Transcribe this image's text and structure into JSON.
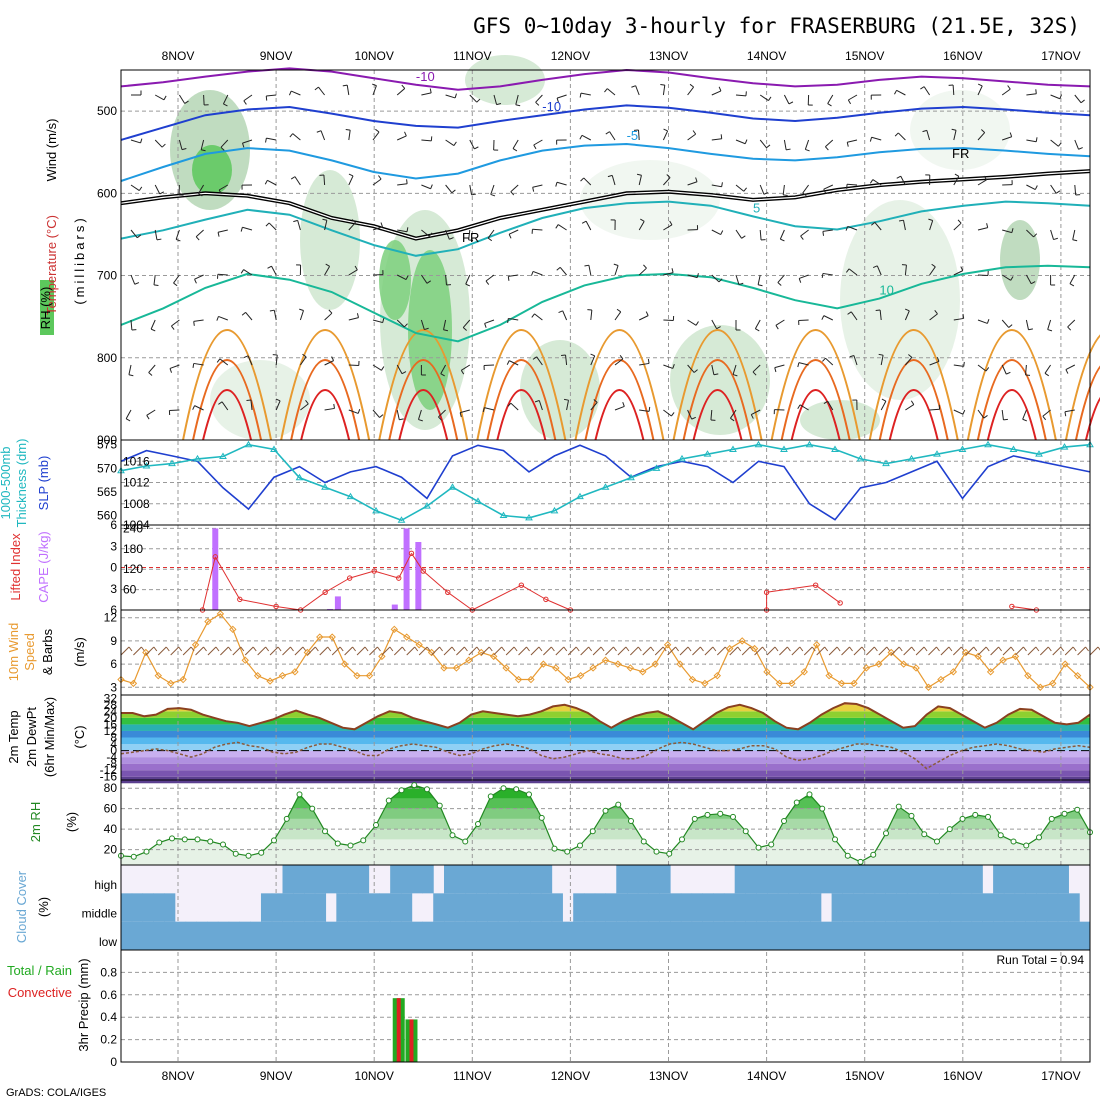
{
  "title": "GFS 0~10day 3-hourly for FRASERBURG (21.5E, 32S)",
  "credit": "GrADS: COLA/IGES",
  "dates": [
    "8NOV",
    "9NOV",
    "10NOV",
    "11NOV",
    "12NOV",
    "13NOV",
    "14NOV",
    "15NOV",
    "16NOV",
    "17NOV"
  ],
  "panel_labels": {
    "wind": "Wind (m/s)",
    "temperature": "Temperature (°C)",
    "rh_upper": "RH (%)",
    "millibars": "(millibars)",
    "slp": "SLP (mb)",
    "thickness": "1000-500mb",
    "thickness2": "Thickness (dm)",
    "cape": "CAPE (J/kg)",
    "lifted": "Lifted Index",
    "wind10": "10m Wind",
    "speed": "Speed",
    "barbs": "& Barbs",
    "wind_units": "(m/s)",
    "temp2m": "2m Temp",
    "dewpt": "2m DewPt",
    "minmax": "(6hr Min/Max)",
    "temp_units": "(°C)",
    "rh2m": "2m RH",
    "rh_units": "(%)",
    "cloud": "Cloud Cover",
    "cloud_units": "(%)",
    "precip": "3hr Precip (mm)",
    "total_rain": "Total / Rain",
    "convective": "Convective",
    "run_total": "Run Total = 0.94"
  },
  "colors": {
    "slp": "#1f3fcf",
    "thickness": "#20b8c0",
    "cape": "#c070ff",
    "lifted": "#e03030",
    "wind10": "#e89a30",
    "temp2m": "#8a4020",
    "rh2m": "#228822",
    "cloud": "#6aa8d4",
    "precip_total": "#22aa22",
    "precip_conv": "#dd2222"
  },
  "chart_data": [
    {
      "type": "contour",
      "name": "upper-air",
      "yaxis": {
        "label": "(millibars)",
        "ticks": [
          500,
          600,
          700,
          800,
          900
        ],
        "range": [
          450,
          900
        ]
      },
      "isotherms": [
        {
          "label": "-10",
          "pressure": [
            470,
            465,
            458,
            452,
            448,
            452,
            460,
            468,
            474,
            470,
            462,
            455,
            450,
            453,
            460,
            466,
            470,
            468,
            462,
            458,
            460,
            464,
            468,
            470
          ],
          "color": "#8a1ab0"
        },
        {
          "label": "-10",
          "pressure": [
            535,
            520,
            505,
            498,
            495,
            503,
            512,
            518,
            520,
            512,
            505,
            498,
            493,
            496,
            502,
            509,
            512,
            508,
            502,
            497,
            495,
            498,
            502,
            505
          ],
          "color": "#1f3fcf"
        },
        {
          "label": "-5",
          "pressure": [
            585,
            568,
            552,
            545,
            548,
            560,
            574,
            582,
            576,
            560,
            548,
            542,
            540,
            545,
            552,
            558,
            560,
            556,
            550,
            546,
            545,
            548,
            552,
            555
          ],
          "color": "#1f9ae0"
        },
        {
          "label": "5",
          "pressure": [
            655,
            645,
            632,
            620,
            626,
            645,
            663,
            676,
            668,
            648,
            630,
            618,
            612,
            610,
            615,
            628,
            640,
            644,
            634,
            622,
            615,
            610,
            612,
            615
          ],
          "color": "#20b0b8"
        },
        {
          "label": "10",
          "pressure": [
            760,
            740,
            715,
            698,
            705,
            720,
            745,
            770,
            780,
            760,
            732,
            712,
            700,
            698,
            702,
            715,
            730,
            740,
            728,
            710,
            698,
            690,
            688,
            690
          ],
          "color": "#18b898"
        }
      ],
      "freezing_level": {
        "label": "FR",
        "pressure": [
          612,
          605,
          600,
          603,
          612,
          630,
          640,
          655,
          645,
          630,
          620,
          610,
          600,
          598,
          602,
          608,
          605,
          596,
          590,
          586,
          583,
          580,
          576,
          573
        ]
      }
    },
    {
      "type": "line",
      "name": "SLP & thickness",
      "series": [
        {
          "name": "SLP (mb)",
          "axis": "right",
          "ylim": [
            1004,
            1020
          ],
          "values": [
            1016,
            1018,
            1017,
            1016,
            1011,
            1007,
            1013,
            1015,
            1012,
            1014,
            1015,
            1013,
            1009,
            1017,
            1019,
            1018,
            1014,
            1017,
            1019,
            1017,
            1013,
            1015,
            1016,
            1015,
            1012,
            1016,
            1015,
            1008,
            1005,
            1011,
            1012,
            1014,
            1016,
            1009,
            1015,
            1017,
            1016,
            1015,
            1014
          ]
        },
        {
          "name": "1000-500mb Thickness (dm)",
          "axis": "left",
          "ylim": [
            558,
            576
          ],
          "values": [
            569.5,
            570.5,
            571,
            572,
            572.5,
            575,
            574,
            568,
            566,
            564,
            561,
            559,
            562,
            566,
            563,
            560,
            559.5,
            561,
            564,
            566,
            568,
            570,
            572,
            573,
            574,
            575,
            574,
            575,
            574,
            572,
            571,
            572,
            573,
            574,
            575,
            574,
            573,
            574.5,
            575
          ]
        }
      ],
      "ticks_left": [
        560,
        565,
        570,
        575
      ],
      "ticks_right": [
        1004,
        1008,
        1012,
        1016
      ]
    },
    {
      "type": "bar",
      "name": "CAPE & Lifted Index",
      "cape_ticks": [
        60,
        120,
        180,
        240
      ],
      "li_ticks": [
        -6,
        -3,
        0,
        3,
        6
      ],
      "cape_bars": [
        {
          "x": 8.38,
          "value": 240
        },
        {
          "x": 9.55,
          "value": 3
        },
        {
          "x": 9.63,
          "value": 40
        },
        {
          "x": 10.21,
          "value": 16
        },
        {
          "x": 10.33,
          "value": 240
        },
        {
          "x": 10.45,
          "value": 200
        }
      ],
      "lifted_index": [
        {
          "x": 8.25,
          "value": 6
        },
        {
          "x": 8.38,
          "value": -1.5
        },
        {
          "x": 8.63,
          "value": 4.5
        },
        {
          "x": 9.0,
          "value": 5.5
        },
        {
          "x": 9.25,
          "value": 6
        },
        {
          "x": 9.5,
          "value": 3.5
        },
        {
          "x": 9.75,
          "value": 1.5
        },
        {
          "x": 10.0,
          "value": 0.5
        },
        {
          "x": 10.25,
          "value": 1.5
        },
        {
          "x": 10.38,
          "value": -2
        },
        {
          "x": 10.5,
          "value": 0.5
        },
        {
          "x": 10.75,
          "value": 3.5
        },
        {
          "x": 11.0,
          "value": 6
        },
        {
          "x": 11.5,
          "value": 2.5
        },
        {
          "x": 11.75,
          "value": 4.5
        },
        {
          "x": 12.0,
          "value": 6
        },
        {
          "x": 14.0,
          "value": 6
        },
        {
          "x": 14.0,
          "value": 3.5
        },
        {
          "x": 14.5,
          "value": 2.5
        },
        {
          "x": 14.75,
          "value": 5
        },
        {
          "x": 16.5,
          "value": 5.5
        },
        {
          "x": 16.75,
          "value": 6
        }
      ],
      "zero_line": 0
    },
    {
      "type": "line",
      "name": "10m Wind Speed",
      "ticks": [
        3,
        6,
        9,
        12
      ],
      "ylim": [
        2,
        13
      ],
      "values": [
        4,
        3.5,
        7.5,
        4.5,
        3.5,
        4,
        8.5,
        11.5,
        12.5,
        10.5,
        6.5,
        4.5,
        3.8,
        4.5,
        5,
        7.5,
        9.5,
        9.5,
        6,
        4.5,
        4.5,
        7,
        10.5,
        9.5,
        8.5,
        7.5,
        5.5,
        5.5,
        6.5,
        7.5,
        7,
        5.5,
        4,
        4,
        6,
        5.5,
        4,
        4.5,
        5.5,
        6.5,
        6,
        5.5,
        5,
        6,
        8.5,
        6,
        4,
        3.5,
        4.5,
        8,
        9,
        8,
        5,
        3.5,
        3.5,
        5,
        8.5,
        4.5,
        3.5,
        3.5,
        5.5,
        6,
        7.5,
        6,
        5.5,
        3,
        4,
        5,
        7.5,
        7,
        5,
        6.5,
        7,
        4.5,
        3,
        3.5,
        6,
        4.5,
        3
      ]
    },
    {
      "type": "area",
      "name": "2m Temperature",
      "ticks": [
        -16,
        -12,
        -8,
        -4,
        0,
        4,
        8,
        12,
        16,
        20,
        24,
        28,
        32
      ],
      "ylim": [
        -18,
        34
      ],
      "temp": [
        23,
        23,
        21,
        22,
        25.5,
        26,
        25,
        22,
        20,
        18,
        17,
        15,
        17,
        19,
        22,
        24.5,
        22,
        20,
        17,
        14,
        13,
        17,
        21,
        24,
        23,
        20,
        18,
        16,
        14,
        17,
        22,
        24,
        23,
        22,
        21,
        22,
        24,
        27,
        28,
        26,
        23,
        18,
        14,
        18,
        21,
        23,
        24,
        21,
        17,
        13,
        18,
        23,
        26.5,
        28,
        26,
        23,
        18,
        14,
        13,
        17,
        22,
        26,
        29,
        28.5,
        26,
        22,
        18,
        14,
        15,
        22,
        27,
        26,
        22,
        18,
        14,
        17,
        22,
        25.5,
        25,
        21,
        17,
        16,
        17,
        22
      ],
      "dewpoint": [
        -2,
        -1,
        0,
        1,
        0,
        -2,
        -4,
        -2,
        2,
        4,
        5,
        3,
        2,
        -1,
        -2,
        -1,
        2,
        4,
        4,
        2,
        0,
        -3,
        -3,
        1,
        3,
        4,
        3,
        2,
        -1,
        -3,
        -2,
        1,
        3,
        4,
        3,
        1,
        -3,
        -5,
        -4,
        -2,
        0,
        -2,
        -3,
        -5,
        -5,
        -3,
        1,
        4,
        5,
        4,
        2,
        0,
        0,
        1,
        3,
        3,
        1,
        -4,
        -6,
        -5,
        -3,
        0,
        2,
        4,
        4,
        3,
        2,
        -1,
        -5,
        -11,
        -7,
        -3,
        0,
        2,
        3,
        4,
        3,
        1,
        0,
        -1,
        1,
        2,
        3,
        2
      ]
    },
    {
      "type": "area",
      "name": "2m RH",
      "ticks": [
        20,
        40,
        60,
        80
      ],
      "ylim": [
        5,
        88
      ],
      "values": [
        14,
        13,
        18,
        27,
        31,
        30,
        30,
        28,
        25,
        16,
        14,
        17,
        29,
        50,
        74,
        60,
        38,
        26,
        24,
        29,
        44,
        68,
        78,
        83,
        79,
        63,
        34,
        28,
        45,
        72,
        80,
        79,
        74,
        51,
        21,
        18,
        24,
        38,
        58,
        64,
        48,
        28,
        18,
        16,
        30,
        50,
        54,
        55,
        52,
        38,
        22,
        25,
        48,
        66,
        74,
        60,
        30,
        14,
        8,
        15,
        36,
        62,
        53,
        35,
        28,
        40,
        50,
        54,
        52,
        34,
        28,
        24,
        32,
        50,
        55,
        59,
        37
      ]
    },
    {
      "type": "heatmap",
      "name": "Cloud Cover",
      "rows": [
        "high",
        "middle",
        "low"
      ],
      "cloud_high": [
        0,
        0,
        0,
        0,
        0,
        0,
        0,
        0,
        0,
        0,
        0,
        0,
        0,
        0,
        0,
        100,
        100,
        100,
        100,
        100,
        100,
        100,
        100,
        0,
        0,
        100,
        100,
        100,
        100,
        0,
        100,
        100,
        100,
        100,
        100,
        100,
        100,
        100,
        100,
        100,
        0,
        0,
        0,
        0,
        0,
        0,
        100,
        100,
        100,
        100,
        100,
        0,
        0,
        0,
        0,
        0,
        0,
        100,
        100,
        100,
        100,
        100,
        100,
        100,
        100,
        100,
        100,
        100,
        100,
        100,
        100,
        100,
        100,
        100,
        100,
        100,
        100,
        100,
        100,
        100,
        0,
        100,
        100,
        100,
        100,
        100,
        100,
        100,
        0,
        0
      ],
      "cloud_middle": [
        100,
        100,
        100,
        100,
        100,
        0,
        0,
        0,
        0,
        0,
        0,
        0,
        0,
        100,
        100,
        100,
        100,
        100,
        100,
        0,
        100,
        100,
        100,
        100,
        100,
        100,
        100,
        0,
        0,
        100,
        100,
        100,
        100,
        100,
        100,
        100,
        100,
        100,
        100,
        100,
        100,
        0,
        100,
        100,
        100,
        100,
        100,
        100,
        100,
        100,
        100,
        100,
        100,
        100,
        100,
        100,
        100,
        100,
        100,
        100,
        100,
        100,
        100,
        100,
        100,
        0,
        100,
        100,
        100,
        100,
        100,
        100,
        100,
        100,
        100,
        100,
        100,
        100,
        100,
        100,
        100,
        100,
        100,
        100,
        100,
        100,
        100,
        100,
        100,
        0
      ],
      "cloud_low": [
        100,
        100,
        100,
        100,
        100,
        100,
        100,
        100,
        100,
        100,
        100,
        100,
        100,
        100,
        100,
        100,
        100,
        100,
        100,
        100,
        100,
        100,
        100,
        100,
        100,
        100,
        100,
        100,
        100,
        100,
        100,
        100,
        100,
        100,
        100,
        100,
        100,
        100,
        100,
        100,
        100,
        100,
        100,
        100,
        100,
        100,
        100,
        100,
        100,
        100,
        100,
        100,
        100,
        100,
        100,
        100,
        100,
        100,
        100,
        100,
        100,
        100,
        100,
        100,
        100,
        100,
        100,
        100,
        100,
        100,
        100,
        100,
        100,
        100,
        100,
        100,
        100,
        100,
        100,
        100,
        100,
        100,
        100,
        100,
        100,
        100,
        100,
        100,
        100,
        100
      ]
    },
    {
      "type": "bar",
      "name": "3hr Precip (mm)",
      "ticks": [
        0,
        0.2,
        0.4,
        0.6,
        0.8
      ],
      "ylim": [
        0,
        1.0
      ],
      "bars": [
        {
          "x": 10.25,
          "total": 0.57,
          "convective": 0.57
        },
        {
          "x": 10.38,
          "total": 0.38,
          "convective": 0.38
        }
      ],
      "run_total": 0.94
    }
  ]
}
